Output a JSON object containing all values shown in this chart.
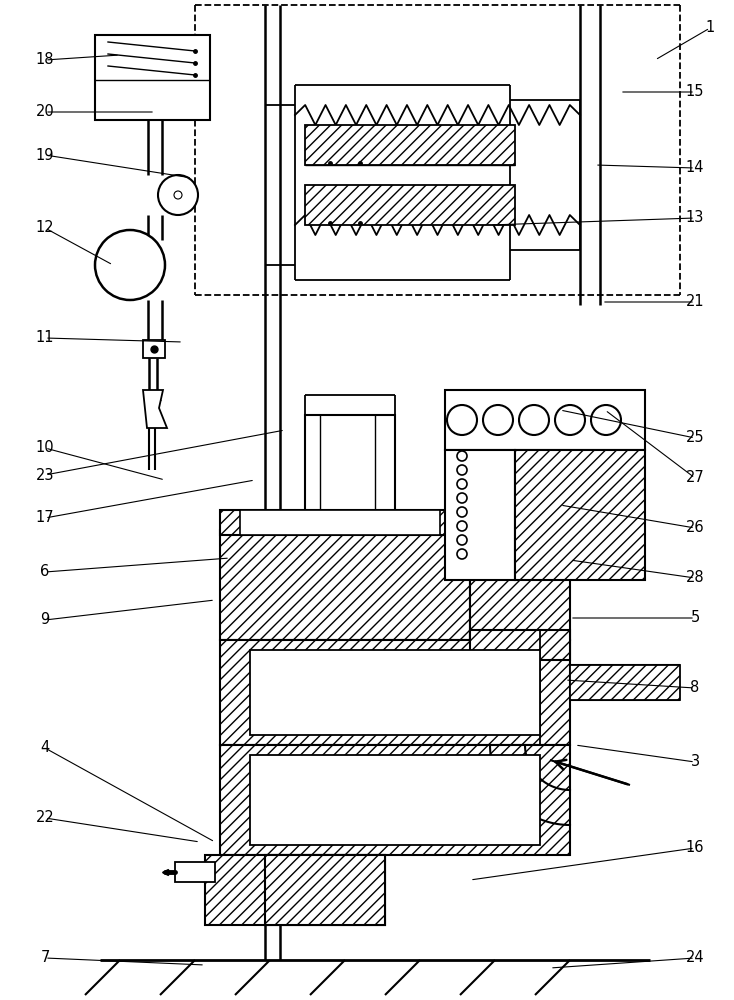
{
  "bg_color": "#ffffff",
  "line_color": "#000000",
  "figsize": [
    7.34,
    10.0
  ],
  "dpi": 100,
  "label_specs": [
    [
      1,
      710,
      28,
      655,
      60
    ],
    [
      3,
      695,
      762,
      575,
      745
    ],
    [
      4,
      45,
      748,
      215,
      842
    ],
    [
      5,
      695,
      618,
      570,
      618
    ],
    [
      6,
      45,
      572,
      230,
      558
    ],
    [
      7,
      45,
      958,
      205,
      965
    ],
    [
      8,
      695,
      688,
      565,
      680
    ],
    [
      9,
      45,
      620,
      215,
      600
    ],
    [
      10,
      45,
      448,
      165,
      480
    ],
    [
      11,
      45,
      338,
      183,
      342
    ],
    [
      12,
      45,
      228,
      113,
      265
    ],
    [
      13,
      695,
      218,
      490,
      225
    ],
    [
      14,
      695,
      168,
      595,
      165
    ],
    [
      15,
      695,
      92,
      620,
      92
    ],
    [
      16,
      695,
      848,
      470,
      880
    ],
    [
      17,
      45,
      518,
      255,
      480
    ],
    [
      18,
      45,
      60,
      120,
      55
    ],
    [
      19,
      45,
      155,
      192,
      178
    ],
    [
      20,
      45,
      112,
      155,
      112
    ],
    [
      21,
      695,
      302,
      602,
      302
    ],
    [
      22,
      45,
      818,
      200,
      842
    ],
    [
      23,
      45,
      475,
      285,
      430
    ],
    [
      24,
      695,
      958,
      550,
      968
    ],
    [
      25,
      695,
      438,
      560,
      410
    ],
    [
      26,
      695,
      528,
      560,
      505
    ],
    [
      27,
      695,
      478,
      605,
      410
    ],
    [
      28,
      695,
      578,
      570,
      560
    ]
  ]
}
